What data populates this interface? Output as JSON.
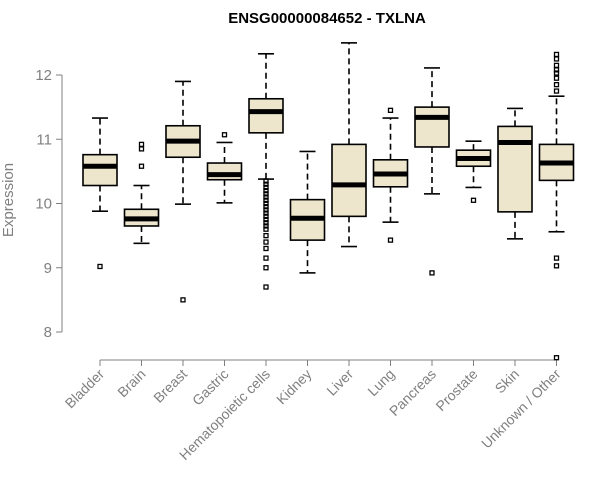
{
  "chart_data": {
    "type": "boxplot",
    "title": "ENSG00000084652 - TXLNA",
    "ylabel": "Expression",
    "xlabel": "",
    "ylim": [
      7.5,
      12.7
    ],
    "yticks": [
      8,
      9,
      10,
      11,
      12
    ],
    "colors": {
      "box_fill": "#ede6cc",
      "box_stroke": "#000000",
      "axis": "#808080"
    },
    "categories": [
      "Bladder",
      "Brain",
      "Breast",
      "Gastric",
      "Hematopoietic cells",
      "Kidney",
      "Liver",
      "Lung",
      "Pancreas",
      "Prostate",
      "Skin",
      "Unknown / Other"
    ],
    "boxes": [
      {
        "category": "Bladder",
        "whisker_low": 9.88,
        "q1": 10.28,
        "median": 10.58,
        "q3": 10.76,
        "whisker_high": 11.33,
        "outliers": [
          9.02
        ]
      },
      {
        "category": "Brain",
        "whisker_low": 9.38,
        "q1": 9.65,
        "median": 9.76,
        "q3": 9.91,
        "whisker_high": 10.28,
        "outliers": [
          10.58,
          10.85,
          10.92
        ]
      },
      {
        "category": "Breast",
        "whisker_low": 9.99,
        "q1": 10.72,
        "median": 10.97,
        "q3": 11.21,
        "whisker_high": 11.9,
        "outliers": [
          8.5
        ]
      },
      {
        "category": "Gastric",
        "whisker_low": 10.01,
        "q1": 10.37,
        "median": 10.45,
        "q3": 10.63,
        "whisker_high": 10.95,
        "outliers": [
          11.07
        ]
      },
      {
        "category": "Hematopoietic cells",
        "whisker_low": 10.38,
        "q1": 11.1,
        "median": 11.43,
        "q3": 11.63,
        "whisker_high": 12.33,
        "outliers": [
          8.7,
          9.0,
          9.15,
          9.3,
          9.4,
          9.5,
          9.6,
          9.65,
          9.7,
          9.75,
          9.8,
          9.85,
          9.9,
          9.95,
          10.0,
          10.05,
          10.1,
          10.15,
          10.2,
          10.25,
          10.3,
          10.35
        ]
      },
      {
        "category": "Kidney",
        "whisker_low": 8.92,
        "q1": 9.43,
        "median": 9.77,
        "q3": 10.06,
        "whisker_high": 10.81,
        "outliers": []
      },
      {
        "category": "Liver",
        "whisker_low": 9.33,
        "q1": 9.8,
        "median": 10.29,
        "q3": 10.92,
        "whisker_high": 12.5,
        "outliers": []
      },
      {
        "category": "Lung",
        "whisker_low": 9.71,
        "q1": 10.26,
        "median": 10.46,
        "q3": 10.68,
        "whisker_high": 11.33,
        "outliers": [
          9.43,
          11.45
        ]
      },
      {
        "category": "Pancreas",
        "whisker_low": 10.15,
        "q1": 10.88,
        "median": 11.34,
        "q3": 11.5,
        "whisker_high": 12.11,
        "outliers": [
          8.92
        ]
      },
      {
        "category": "Prostate",
        "whisker_low": 10.25,
        "q1": 10.58,
        "median": 10.7,
        "q3": 10.83,
        "whisker_high": 10.97,
        "outliers": [
          10.05
        ]
      },
      {
        "category": "Skin",
        "whisker_low": 9.45,
        "q1": 9.87,
        "median": 10.95,
        "q3": 11.2,
        "whisker_high": 11.48,
        "outliers": []
      },
      {
        "category": "Unknown / Other",
        "whisker_low": 9.56,
        "q1": 10.36,
        "median": 10.63,
        "q3": 10.92,
        "whisker_high": 11.67,
        "outliers": [
          7.6,
          9.03,
          9.15,
          11.75,
          11.85,
          11.95,
          12.03,
          12.08,
          12.15,
          12.25,
          12.32
        ]
      }
    ]
  }
}
